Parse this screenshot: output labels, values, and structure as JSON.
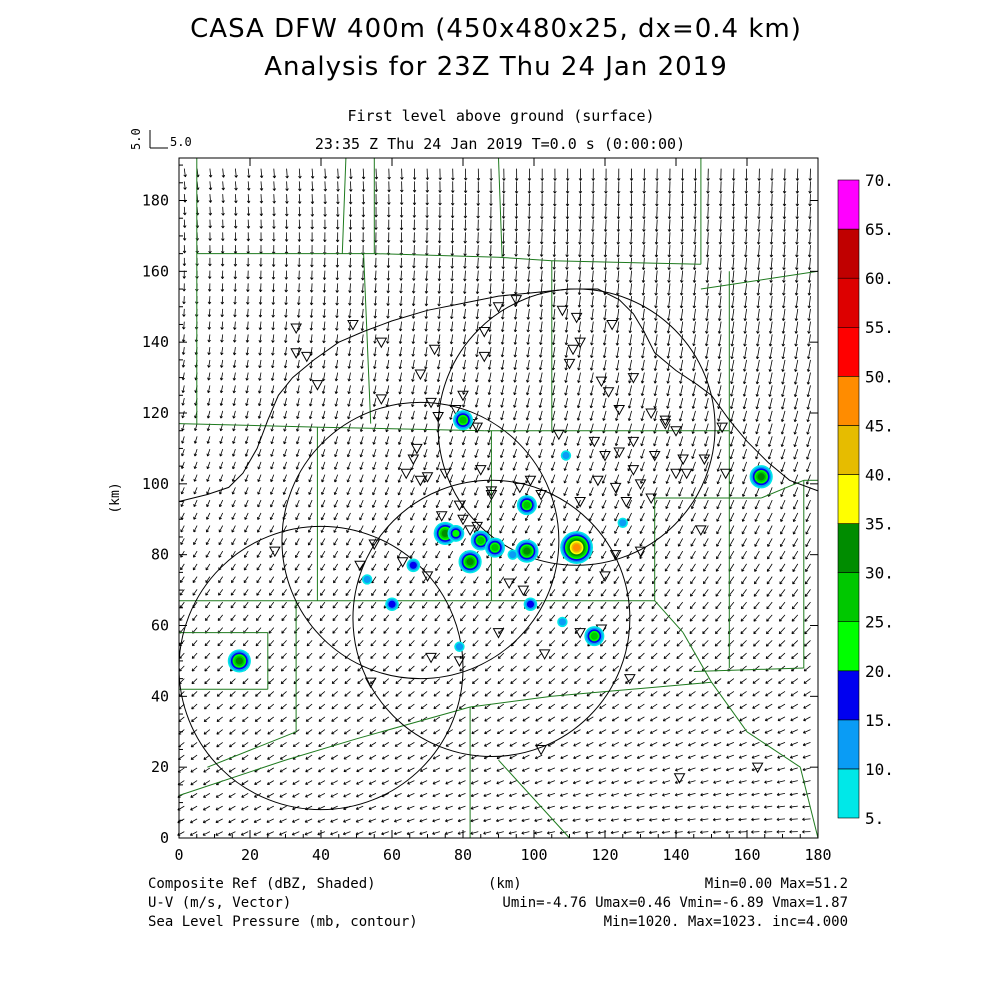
{
  "title_line1": "CASA DFW 400m (450x480x25, dx=0.4 km)",
  "title_line2": "Analysis for 23Z Thu 24 Jan 2019",
  "subtitle_level": "First level above ground (surface)",
  "subtitle_time": "23:35 Z Thu 24 Jan 2019    T=0.0 s (0:00:00)",
  "ref_vector": {
    "v_label": "5.0",
    "u_label": "5.0"
  },
  "footer": {
    "left1": "Composite Ref (dBZ, Shaded)",
    "center1": "(km)",
    "right1": "Min=0.00 Max=51.2",
    "left2": "U-V (m/s, Vector)",
    "right2": "Umin=-4.76 Umax=0.46 Vmin=-6.89 Vmax=1.87",
    "left3": "Sea Level Pressure (mb, contour)",
    "right3": "Min=1020. Max=1023. inc=4.000"
  },
  "chart_data": {
    "type": "map",
    "xlabel": "",
    "ylabel": "(km)",
    "xlim": [
      0,
      180
    ],
    "ylim": [
      0,
      192
    ],
    "x_ticks": [
      "0",
      "20",
      "40",
      "60",
      "80",
      "100",
      "120",
      "140",
      "160",
      "180"
    ],
    "y_ticks": [
      "0",
      "20",
      "40",
      "60",
      "80",
      "100",
      "120",
      "140",
      "160",
      "180"
    ],
    "colorbar": {
      "labels": [
        "5.",
        "10.",
        "15.",
        "20.",
        "25.",
        "30.",
        "35.",
        "40.",
        "45.",
        "50.",
        "55.",
        "60.",
        "65.",
        "70."
      ],
      "colors": [
        "#00e8e8",
        "#0a9cf5",
        "#0000f0",
        "#00ff00",
        "#00c800",
        "#008c00",
        "#ffff00",
        "#e6bc00",
        "#ff8c00",
        "#ff0000",
        "#dd0000",
        "#c00000",
        "#ff00ff"
      ]
    },
    "radar_circles": [
      {
        "center": [
          112,
          116
        ],
        "radius": 39
      },
      {
        "center": [
          68,
          84
        ],
        "radius": 39
      },
      {
        "center": [
          40,
          48
        ],
        "radius": 40
      },
      {
        "center": [
          88,
          62
        ],
        "radius": 39
      }
    ],
    "reflectivity_cells": [
      {
        "x": 17,
        "y": 50,
        "dbz": 30
      },
      {
        "x": 80,
        "y": 118,
        "dbz": 25
      },
      {
        "x": 75,
        "y": 86,
        "dbz": 30
      },
      {
        "x": 78,
        "y": 86,
        "dbz": 20
      },
      {
        "x": 85,
        "y": 84,
        "dbz": 25
      },
      {
        "x": 89,
        "y": 82,
        "dbz": 25
      },
      {
        "x": 98,
        "y": 81,
        "dbz": 30
      },
      {
        "x": 94,
        "y": 80,
        "dbz": 10
      },
      {
        "x": 82,
        "y": 78,
        "dbz": 30
      },
      {
        "x": 98,
        "y": 94,
        "dbz": 25
      },
      {
        "x": 112,
        "y": 82,
        "dbz": 45
      },
      {
        "x": 66,
        "y": 77,
        "dbz": 15
      },
      {
        "x": 53,
        "y": 73,
        "dbz": 10
      },
      {
        "x": 60,
        "y": 66,
        "dbz": 15
      },
      {
        "x": 99,
        "y": 66,
        "dbz": 15
      },
      {
        "x": 117,
        "y": 57,
        "dbz": 25
      },
      {
        "x": 108,
        "y": 61,
        "dbz": 10
      },
      {
        "x": 79,
        "y": 54,
        "dbz": 10
      },
      {
        "x": 109,
        "y": 108,
        "dbz": 10
      },
      {
        "x": 125,
        "y": 89,
        "dbz": 10
      },
      {
        "x": 164,
        "y": 102,
        "dbz": 30
      }
    ],
    "stations": [
      [
        33,
        144
      ],
      [
        33,
        137
      ],
      [
        49,
        145
      ],
      [
        57,
        140
      ],
      [
        72,
        138
      ],
      [
        68,
        131
      ],
      [
        57,
        124
      ],
      [
        36,
        136
      ],
      [
        39,
        128
      ],
      [
        71,
        123
      ],
      [
        73,
        119
      ],
      [
        78,
        121
      ],
      [
        82,
        117
      ],
      [
        84,
        116
      ],
      [
        67,
        110
      ],
      [
        66,
        107
      ],
      [
        64,
        103
      ],
      [
        68,
        101
      ],
      [
        70,
        102
      ],
      [
        75,
        103
      ],
      [
        85,
        104
      ],
      [
        88,
        97
      ],
      [
        74,
        91
      ],
      [
        80,
        90
      ],
      [
        82,
        87
      ],
      [
        84,
        88
      ],
      [
        79,
        94
      ],
      [
        88,
        98
      ],
      [
        96,
        99
      ],
      [
        99,
        101
      ],
      [
        102,
        97
      ],
      [
        113,
        95
      ],
      [
        118,
        101
      ],
      [
        123,
        99
      ],
      [
        126,
        95
      ],
      [
        130,
        100
      ],
      [
        133,
        96
      ],
      [
        140,
        103
      ],
      [
        143,
        103
      ],
      [
        142,
        107
      ],
      [
        148,
        107
      ],
      [
        140,
        115
      ],
      [
        137,
        118
      ],
      [
        128,
        112
      ],
      [
        124,
        121
      ],
      [
        121,
        126
      ],
      [
        119,
        129
      ],
      [
        110,
        134
      ],
      [
        113,
        140
      ],
      [
        112,
        147
      ],
      [
        108,
        149
      ],
      [
        95,
        152
      ],
      [
        90,
        150
      ],
      [
        86,
        143
      ],
      [
        86,
        136
      ],
      [
        80,
        125
      ],
      [
        80,
        119
      ],
      [
        107,
        114
      ],
      [
        117,
        112
      ],
      [
        124,
        109
      ],
      [
        128,
        104
      ],
      [
        120,
        108
      ],
      [
        134,
        108
      ],
      [
        147,
        87
      ],
      [
        130,
        81
      ],
      [
        120,
        74
      ],
      [
        123,
        80
      ],
      [
        27,
        81
      ],
      [
        51,
        77
      ],
      [
        63,
        78
      ],
      [
        70,
        74
      ],
      [
        93,
        72
      ],
      [
        97,
        70
      ],
      [
        90,
        58
      ],
      [
        71,
        51
      ],
      [
        79,
        50
      ],
      [
        54,
        44
      ],
      [
        103,
        52
      ],
      [
        113,
        58
      ],
      [
        119,
        59
      ],
      [
        127,
        45
      ],
      [
        102,
        25
      ],
      [
        141,
        17
      ],
      [
        163,
        20
      ],
      [
        55,
        83
      ],
      [
        111,
        138
      ],
      [
        122,
        145
      ],
      [
        128,
        130
      ],
      [
        133,
        120
      ],
      [
        137,
        117
      ],
      [
        153,
        116
      ],
      [
        154,
        103
      ]
    ],
    "contours": [
      "1020 mb SLP isobar"
    ]
  }
}
